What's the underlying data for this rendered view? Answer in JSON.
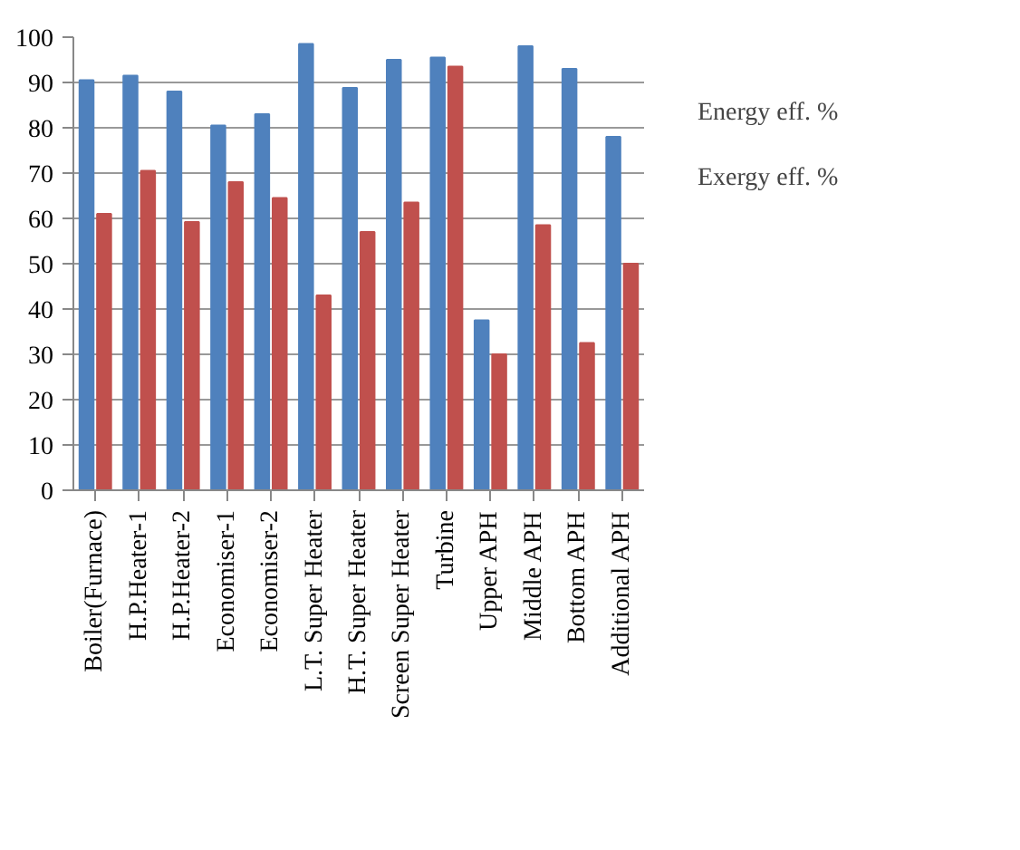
{
  "chart_data": {
    "type": "bar",
    "categories": [
      "Boiler(Furnace)",
      "H.P.Heater-1",
      "H.P.Heater-2",
      "Economiser-1",
      "Economiser-2",
      "L.T. Super Heater",
      "H.T. Super Heater",
      "Screen Super Heater",
      "Turbine",
      "Upper APH",
      "Middle APH",
      "Bottom APH",
      "Additional APH"
    ],
    "series": [
      {
        "name": "Energy eff. %",
        "color": "#4f81bd",
        "values": [
          90.5,
          91.5,
          88,
          80.5,
          83,
          98.5,
          88.8,
          95,
          95.5,
          37.5,
          98,
          93,
          78
        ]
      },
      {
        "name": "Exergy eff. %",
        "color": "#c0504d",
        "values": [
          61,
          70.5,
          59.2,
          68,
          64.5,
          43,
          57,
          63.5,
          93.5,
          30,
          58.5,
          32.5,
          50
        ]
      }
    ],
    "ylim": [
      0,
      100
    ],
    "yticks": [
      0,
      10,
      20,
      30,
      40,
      50,
      60,
      70,
      80,
      90,
      100
    ],
    "grid": "y",
    "legend": "right"
  }
}
